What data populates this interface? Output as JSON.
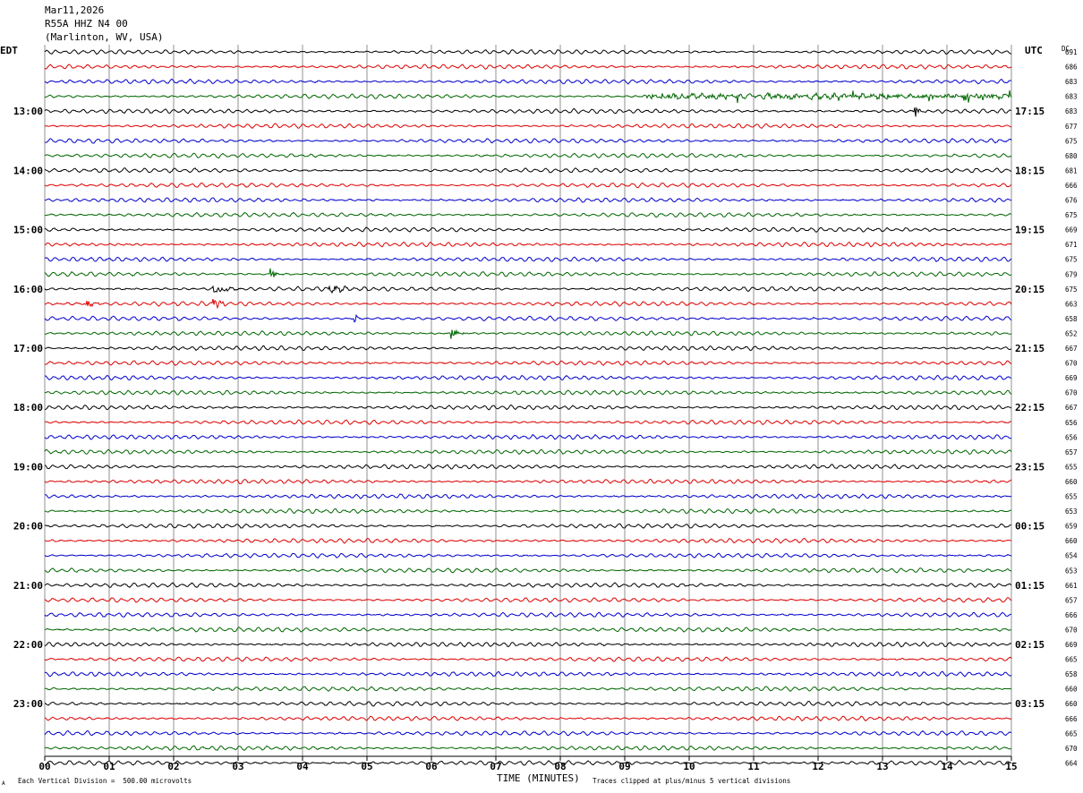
{
  "header": {
    "date": "Mar11,2026",
    "station": "R55A HHZ N4 00",
    "location": "(Marlinton, WV, USA)"
  },
  "labels": {
    "left_zone": "EDT",
    "right_zone": "UTC",
    "dc_label": "DC",
    "x_axis_title": "TIME (MINUTES)",
    "scale_note": "Each Vertical Division =  500.00 microvolts",
    "clip_note": "Traces clipped at plus/minus 5 vertical divisions",
    "corner_mark": "A"
  },
  "chart_data": {
    "type": "line",
    "title": "R55A HHZ N4 00",
    "xlabel": "TIME (MINUTES)",
    "xlim": [
      0,
      15
    ],
    "x_ticks": [
      "00",
      "01",
      "02",
      "03",
      "04",
      "05",
      "06",
      "07",
      "08",
      "09",
      "10",
      "11",
      "12",
      "13",
      "14",
      "15"
    ],
    "trace_colors": [
      "#000000",
      "#dd0000",
      "#0000cc",
      "#006600"
    ],
    "left_hour_labels": [
      "13:00",
      "14:00",
      "15:00",
      "16:00",
      "17:00",
      "18:00",
      "19:00",
      "20:00",
      "21:00",
      "22:00",
      "23:00"
    ],
    "right_hour_labels": [
      "17:15",
      "18:15",
      "19:15",
      "20:15",
      "21:15",
      "22:15",
      "23:15",
      "00:15",
      "01:15",
      "02:15",
      "03:15"
    ],
    "first_labeled_row": 4,
    "dc_offsets": [
      "691",
      "686",
      "683",
      "683",
      "683",
      "677",
      "675",
      "680",
      "681",
      "666",
      "676",
      "675",
      "669",
      "671",
      "675",
      "679",
      "675",
      "663",
      "658",
      "652",
      "667",
      "670",
      "669",
      "670",
      "667",
      "656",
      "656",
      "657",
      "655",
      "660",
      "655",
      "653",
      "659",
      "660",
      "654",
      "653",
      "661",
      "657",
      "666",
      "670",
      "669",
      "665",
      "658",
      "660",
      "660",
      "666",
      "665",
      "670",
      "664"
    ],
    "events": [
      {
        "row": 3,
        "minute_start": 9.3,
        "minute_end": 15.0,
        "note": "noise bursts"
      },
      {
        "row": 4,
        "minute_start": 13.5,
        "minute_end": 13.7,
        "note": "spike"
      },
      {
        "row": 15,
        "minute_start": 3.5,
        "minute_end": 3.7,
        "note": "spike"
      },
      {
        "row": 16,
        "minute_start": 2.6,
        "minute_end": 3.1,
        "note": "spikes"
      },
      {
        "row": 16,
        "minute_start": 4.4,
        "minute_end": 4.8,
        "note": "local event"
      },
      {
        "row": 17,
        "minute_start": 0.6,
        "minute_end": 0.9,
        "note": "spike"
      },
      {
        "row": 17,
        "minute_start": 2.6,
        "minute_end": 2.9,
        "note": "spike"
      },
      {
        "row": 18,
        "minute_start": 4.8,
        "minute_end": 4.95,
        "note": "spike"
      },
      {
        "row": 19,
        "minute_start": 6.3,
        "minute_end": 6.6,
        "note": "burst"
      }
    ]
  }
}
